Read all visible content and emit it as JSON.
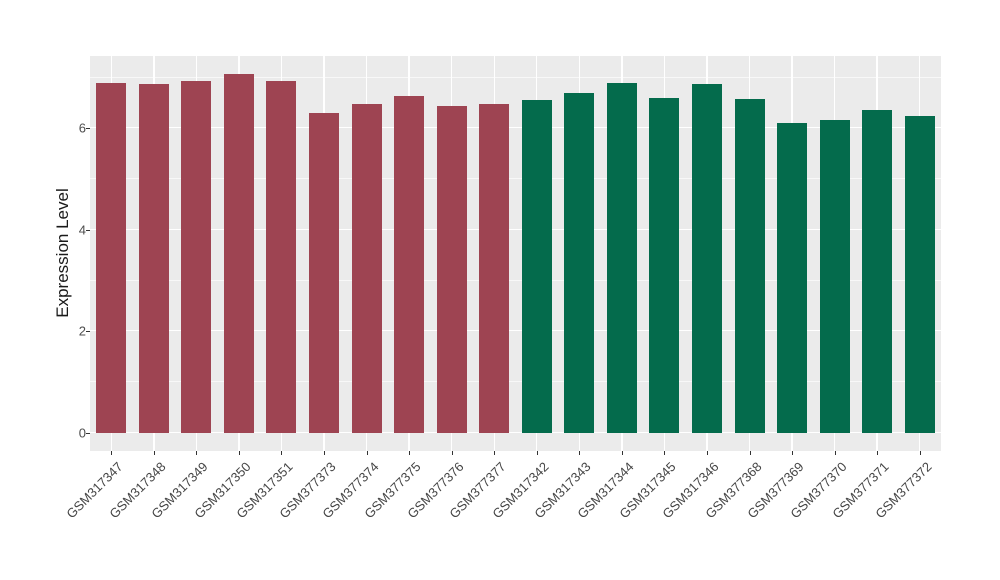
{
  "chart_data": {
    "type": "bar",
    "title": "",
    "xlabel": "",
    "ylabel": "Expression Level",
    "yticks": [
      0,
      2,
      4,
      6
    ],
    "yticks_minor": [
      1,
      3,
      5,
      7
    ],
    "ylim": [
      0,
      7.43
    ],
    "grid": true,
    "legend_position": "none",
    "panel_background": "#EBEBEB",
    "grid_color": "#FFFFFF",
    "axis_text_color": "#4D4D4D",
    "group_colors": {
      "group_1": "#9E4452",
      "group_2": "#046B4C"
    },
    "categories": [
      "GSM317347",
      "GSM317348",
      "GSM317349",
      "GSM317350",
      "GSM317351",
      "GSM377373",
      "GSM377374",
      "GSM377375",
      "GSM377376",
      "GSM377377",
      "GSM317342",
      "GSM317343",
      "GSM317344",
      "GSM317345",
      "GSM317346",
      "GSM377368",
      "GSM377369",
      "GSM377370",
      "GSM377371",
      "GSM377372"
    ],
    "bars": [
      {
        "label": "GSM317347",
        "value": 6.9,
        "color": "#9E4452"
      },
      {
        "label": "GSM317348",
        "value": 6.88,
        "color": "#9E4452"
      },
      {
        "label": "GSM317349",
        "value": 6.93,
        "color": "#9E4452"
      },
      {
        "label": "GSM317350",
        "value": 7.07,
        "color": "#9E4452"
      },
      {
        "label": "GSM317351",
        "value": 6.93,
        "color": "#9E4452"
      },
      {
        "label": "GSM377373",
        "value": 6.31,
        "color": "#9E4452"
      },
      {
        "label": "GSM377374",
        "value": 6.47,
        "color": "#9E4452"
      },
      {
        "label": "GSM377375",
        "value": 6.63,
        "color": "#9E4452"
      },
      {
        "label": "GSM377376",
        "value": 6.44,
        "color": "#9E4452"
      },
      {
        "label": "GSM377377",
        "value": 6.47,
        "color": "#9E4452"
      },
      {
        "label": "GSM317342",
        "value": 6.56,
        "color": "#046B4C"
      },
      {
        "label": "GSM317343",
        "value": 6.7,
        "color": "#046B4C"
      },
      {
        "label": "GSM317344",
        "value": 6.9,
        "color": "#046B4C"
      },
      {
        "label": "GSM317345",
        "value": 6.6,
        "color": "#046B4C"
      },
      {
        "label": "GSM317346",
        "value": 6.88,
        "color": "#046B4C"
      },
      {
        "label": "GSM377368",
        "value": 6.58,
        "color": "#046B4C"
      },
      {
        "label": "GSM377369",
        "value": 6.11,
        "color": "#046B4C"
      },
      {
        "label": "GSM377370",
        "value": 6.16,
        "color": "#046B4C"
      },
      {
        "label": "GSM377371",
        "value": 6.37,
        "color": "#046B4C"
      },
      {
        "label": "GSM377372",
        "value": 6.25,
        "color": "#046B4C"
      }
    ]
  }
}
